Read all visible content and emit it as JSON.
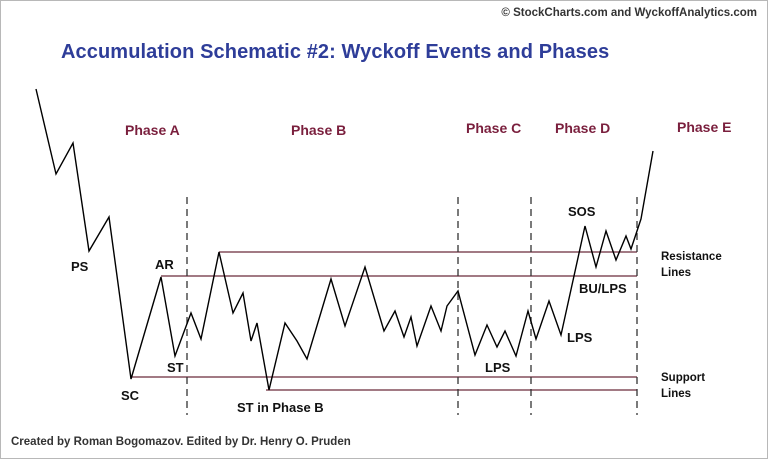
{
  "header": {
    "copyright": "© StockCharts.com and WyckoffAnalytics.com",
    "title": "Accumulation Schematic #2: Wyckoff Events and Phases"
  },
  "footer": {
    "credits": "Created by Roman Bogomazov. Edited by Dr. Henry O. Pruden"
  },
  "colors": {
    "title": "#2e3d99",
    "phase": "#7a1f3d",
    "price_line": "#000000",
    "level_lines": "#6b2a3a",
    "divider": "#333333"
  },
  "phases": [
    {
      "label": "Phase A"
    },
    {
      "label": "Phase B"
    },
    {
      "label": "Phase C"
    },
    {
      "label": "Phase D"
    },
    {
      "label": "Phase E"
    }
  ],
  "events": {
    "ps": "PS",
    "sc": "SC",
    "ar": "AR",
    "st": "ST",
    "st_phase_b": "ST in Phase B",
    "lps_c": "LPS",
    "sos": "SOS",
    "bu_lps": "BU/LPS",
    "lps_d": "LPS"
  },
  "lines": {
    "resistance": [
      "Resistance",
      "Lines"
    ],
    "support": [
      "Support",
      "Lines"
    ]
  }
}
